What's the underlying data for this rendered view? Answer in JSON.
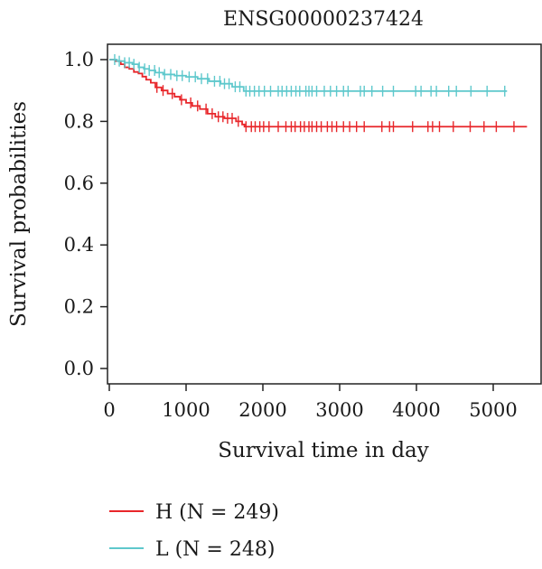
{
  "chart_data": {
    "type": "line",
    "title": "ENSG00000237424",
    "xlabel": "Survival time in day",
    "ylabel": "Survival probabilities",
    "xlim": [
      0,
      5500
    ],
    "ylim": [
      0,
      1.05
    ],
    "x_ticks": [
      0,
      1000,
      2000,
      3000,
      4000,
      5000
    ],
    "y_ticks": [
      "0.0",
      "0.2",
      "0.4",
      "0.6",
      "0.8",
      "1.0"
    ],
    "grid": false,
    "legend_position": "bottom-left",
    "series": [
      {
        "name": "H (N = 249)",
        "color": "#e8262a",
        "step_points": [
          [
            0,
            1.0
          ],
          [
            80,
            0.995
          ],
          [
            150,
            0.985
          ],
          [
            200,
            0.975
          ],
          [
            260,
            0.97
          ],
          [
            320,
            0.96
          ],
          [
            380,
            0.955
          ],
          [
            430,
            0.945
          ],
          [
            480,
            0.935
          ],
          [
            540,
            0.925
          ],
          [
            600,
            0.91
          ],
          [
            680,
            0.9
          ],
          [
            760,
            0.89
          ],
          [
            850,
            0.88
          ],
          [
            920,
            0.87
          ],
          [
            1000,
            0.86
          ],
          [
            1080,
            0.85
          ],
          [
            1180,
            0.84
          ],
          [
            1280,
            0.825
          ],
          [
            1380,
            0.815
          ],
          [
            1500,
            0.81
          ],
          [
            1650,
            0.8
          ],
          [
            1730,
            0.79
          ],
          [
            1760,
            0.783
          ],
          [
            5440,
            0.783
          ]
        ],
        "censor_x": [
          620,
          700,
          820,
          940,
          1060,
          1150,
          1260,
          1340,
          1420,
          1480,
          1540,
          1600,
          1680,
          1780,
          1850,
          1900,
          1960,
          2010,
          2080,
          2200,
          2300,
          2370,
          2420,
          2490,
          2540,
          2600,
          2640,
          2700,
          2760,
          2840,
          2900,
          2960,
          3050,
          3130,
          3220,
          3320,
          3550,
          3650,
          3700,
          3950,
          4150,
          4210,
          4300,
          4480,
          4700,
          4880,
          5040,
          5270
        ]
      },
      {
        "name": "L (N = 248)",
        "color": "#5ec8cc",
        "step_points": [
          [
            0,
            1.0
          ],
          [
            100,
            0.995
          ],
          [
            200,
            0.99
          ],
          [
            300,
            0.985
          ],
          [
            380,
            0.975
          ],
          [
            450,
            0.97
          ],
          [
            520,
            0.965
          ],
          [
            600,
            0.958
          ],
          [
            700,
            0.952
          ],
          [
            850,
            0.948
          ],
          [
            1000,
            0.944
          ],
          [
            1150,
            0.938
          ],
          [
            1300,
            0.93
          ],
          [
            1450,
            0.922
          ],
          [
            1600,
            0.912
          ],
          [
            1750,
            0.898
          ],
          [
            5180,
            0.898
          ]
        ],
        "censor_x": [
          70,
          130,
          200,
          260,
          320,
          390,
          460,
          520,
          590,
          650,
          720,
          800,
          880,
          950,
          1040,
          1120,
          1200,
          1280,
          1370,
          1440,
          1500,
          1560,
          1640,
          1700,
          1780,
          1830,
          1890,
          1950,
          2020,
          2100,
          2200,
          2250,
          2310,
          2370,
          2430,
          2480,
          2560,
          2600,
          2640,
          2700,
          2800,
          2880,
          2960,
          3050,
          3110,
          3270,
          3320,
          3420,
          3560,
          3700,
          3990,
          4060,
          4190,
          4260,
          4420,
          4520,
          4710,
          4920,
          5150
        ]
      }
    ]
  }
}
